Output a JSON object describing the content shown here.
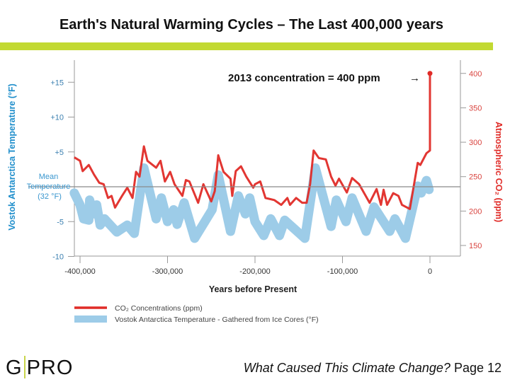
{
  "slide": {
    "title": "Earth's Natural Warming Cycles – The Last 400,000 years",
    "accent_color": "#c2d932",
    "logo_left": "G",
    "logo_right": "PRO",
    "footer_question": "What Caused This Climate Change?",
    "footer_page": " Page 12"
  },
  "chart_data": {
    "type": "line",
    "xlabel": "Years before Present",
    "ylabel_left": "Vostok Antarctica Temperature (°F)",
    "ylabel_right": "Atmospheric CO₂ (ppm)",
    "xlim": [
      -407000,
      35000
    ],
    "ylim_left": [
      -10,
      17
    ],
    "ylim_right": [
      150,
      403
    ],
    "x_ticks": [
      -400000,
      -300000,
      -200000,
      -100000,
      0
    ],
    "x_tick_labels": [
      "-400,000",
      "-300,000",
      "-200,000",
      "-100,000",
      "0"
    ],
    "left_ticks": [
      15,
      10,
      5,
      -5,
      -10
    ],
    "left_tick_labels": [
      "+15",
      "+10",
      "+5",
      "-5",
      "-10"
    ],
    "right_ticks": [
      400,
      350,
      300,
      250,
      200,
      150
    ],
    "right_tick_labels": [
      "400",
      "350",
      "300",
      "250",
      "200",
      "150"
    ],
    "reference_line": {
      "value": 0,
      "label_lines": [
        "Mean",
        "Temperature",
        "(32 °F)"
      ]
    },
    "annotation": "2013 concentration = 400 ppm",
    "annotation_arrow": "→",
    "legend_position": "bottom",
    "grid": false,
    "series": [
      {
        "name": "CO₂ Concentrations (ppm)",
        "axis": "right",
        "color": "#e02b27",
        "x": [
          -406600,
          -400000,
          -397000,
          -390000,
          -384000,
          -378000,
          -373000,
          -368000,
          -364000,
          -360000,
          -352000,
          -346000,
          -340000,
          -336000,
          -332000,
          -327000,
          -323000,
          -313000,
          -308000,
          -303000,
          -297000,
          -292000,
          -283000,
          -279000,
          -275000,
          -265000,
          -259000,
          -250000,
          -246000,
          -242000,
          -236000,
          -228000,
          -226000,
          -222000,
          -216000,
          -210000,
          -202000,
          -200000,
          -194000,
          -188000,
          -178000,
          -170000,
          -163000,
          -160000,
          -153000,
          -146000,
          -141000,
          -137000,
          -133000,
          -127000,
          -119000,
          -113000,
          -108000,
          -104000,
          -95000,
          -89000,
          -81000,
          -69000,
          -61000,
          -56000,
          -53000,
          -49000,
          -42000,
          -36000,
          -32000,
          -23000,
          -14000,
          -11000,
          -4000,
          0,
          0
        ],
        "y": [
          278,
          273,
          258,
          267,
          253,
          241,
          239,
          219,
          222,
          205,
          222,
          234,
          219,
          257,
          250,
          294,
          273,
          263,
          273,
          243,
          257,
          239,
          222,
          245,
          243,
          212,
          239,
          214,
          229,
          281,
          257,
          247,
          222,
          258,
          265,
          250,
          234,
          239,
          243,
          219,
          216,
          209,
          219,
          209,
          219,
          212,
          212,
          239,
          288,
          277,
          275,
          250,
          237,
          247,
          227,
          248,
          239,
          212,
          232,
          209,
          231,
          209,
          226,
          222,
          209,
          203,
          270,
          267,
          284,
          288,
          400
        ]
      },
      {
        "name": "Vostok Antarctica Temperature - Gathered from Ice Cores (°F)",
        "axis": "left",
        "color": "#9dcce8",
        "x": [
          -406600,
          -400000,
          -396000,
          -390000,
          -389000,
          -385000,
          -381000,
          -377000,
          -372000,
          -358000,
          -346000,
          -338000,
          -327000,
          -313000,
          -307000,
          -300000,
          -293000,
          -289000,
          -281000,
          -269000,
          -249000,
          -242000,
          -228000,
          -219000,
          -211000,
          -206000,
          -200000,
          -190000,
          -182000,
          -172000,
          -166000,
          -143000,
          -131000,
          -113000,
          -107000,
          -96000,
          -89000,
          -73000,
          -64000,
          -46000,
          -40000,
          -28000,
          -14000,
          -10000,
          -4000,
          -1000
        ],
        "y": [
          -0.9,
          -2.6,
          -4.6,
          -4.8,
          -1.9,
          -3.9,
          -2.6,
          -5.5,
          -4.6,
          -6.5,
          -5.5,
          -6.7,
          2.7,
          -4.6,
          -1.6,
          -5.0,
          -3.3,
          -5.4,
          -2.3,
          -7.4,
          -3.3,
          1.7,
          -6.4,
          -1.3,
          -3.9,
          -1.6,
          -5.0,
          -7.0,
          -4.6,
          -7.0,
          -4.8,
          -7.4,
          2.7,
          -5.7,
          -1.9,
          -5.0,
          -1.6,
          -6.4,
          -2.9,
          -6.4,
          -4.6,
          -7.4,
          0.1,
          -0.9,
          0.9,
          -0.4
        ]
      }
    ]
  }
}
